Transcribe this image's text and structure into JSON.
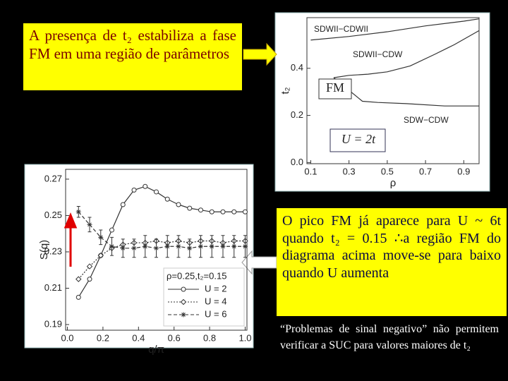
{
  "callout_top": "A presença de t₂ estabiliza a fase FM em uma região de parâmetros",
  "callout_right": "O pico FM já aparece para U ~ 6t quando t₂ = 0.15 ∴a região FM do diagrama acima move-se para baixo quando U aumenta",
  "note": "“Problemas de sinal negativo” não permitem verificar a SUC para valores maiores de t₂",
  "chart_data": [
    {
      "type": "line",
      "xlabel": "ρ",
      "ylabel": "t₂",
      "xlim": [
        0.08,
        0.98
      ],
      "ylim": [
        -0.005,
        0.615
      ],
      "xticks": [
        0.1,
        0.3,
        0.5,
        0.7,
        0.9
      ],
      "yticks": [
        {
          "value": 0,
          "label": "0.0"
        },
        0.2,
        0.4
      ],
      "region_labels": [
        "SDWII−CDWII",
        "SDWII−CDW",
        "SDW−CDW",
        "FM",
        "U = 2t"
      ],
      "series": [
        {
          "color": "#333333",
          "x": [
            0.1,
            0.3,
            0.5,
            0.7,
            0.9,
            0.98
          ],
          "values": [
            0.52,
            0.535,
            0.555,
            0.58,
            0.6,
            0.61
          ]
        },
        {
          "color": "#333333",
          "x": [
            0.98,
            0.85,
            0.75,
            0.62,
            0.5,
            0.4,
            0.3,
            0.22
          ],
          "values": [
            0.56,
            0.5,
            0.46,
            0.41,
            0.385,
            0.375,
            0.37,
            0.36
          ]
        },
        {
          "color": "#333333",
          "x": [
            0.22,
            0.28,
            0.34,
            0.37,
            0.45,
            0.6,
            0.8,
            0.98
          ],
          "values": [
            0.36,
            0.32,
            0.28,
            0.26,
            0.255,
            0.25,
            0.24,
            0.24
          ]
        }
      ]
    },
    {
      "type": "line",
      "xlabel": "q/π",
      "ylabel": "S(q)",
      "legend_title": "ρ=0.25,t₂=0.15",
      "xlim": [
        -0.01,
        1.01
      ],
      "ylim": [
        0.1869,
        0.2754
      ],
      "xticks": [
        {
          "value": 0,
          "label": "0.0"
        },
        0.2,
        0.4,
        0.6,
        0.8,
        {
          "value": 1,
          "label": "1.0"
        }
      ],
      "yticks": [
        0.19,
        0.21,
        0.23,
        0.25,
        0.27
      ],
      "x": [
        0.0625,
        0.125,
        0.1875,
        0.25,
        0.3125,
        0.375,
        0.4375,
        0.5,
        0.5625,
        0.625,
        0.6875,
        0.75,
        0.8125,
        0.875,
        0.9375,
        1.0
      ],
      "series": [
        {
          "name": "U = 2",
          "color": "#333333",
          "marker": "circle",
          "dash": "none",
          "values": [
            0.205,
            0.215,
            0.228,
            0.242,
            0.256,
            0.264,
            0.266,
            0.263,
            0.259,
            0.256,
            0.254,
            0.253,
            0.252,
            0.252,
            0.252,
            0.252
          ]
        },
        {
          "name": "U = 4",
          "color": "#333333",
          "marker": "diamond",
          "dash": "2 2",
          "values": [
            0.215,
            0.222,
            0.228,
            0.232,
            0.234,
            0.235,
            0.235,
            0.236,
            0.235,
            0.236,
            0.235,
            0.236,
            0.236,
            0.235,
            0.236,
            0.236
          ]
        },
        {
          "name": "U = 6",
          "color": "#333333",
          "marker": "star",
          "dash": "5 3",
          "values": [
            0.252,
            0.245,
            0.238,
            0.233,
            0.232,
            0.232,
            0.233,
            0.232,
            0.233,
            0.233,
            0.232,
            0.233,
            0.233,
            0.233,
            0.233,
            0.233
          ],
          "errors": [
            0.003,
            0.004,
            0.004,
            0.005,
            0.005,
            0.005,
            0.006,
            0.005,
            0.006,
            0.006,
            0.005,
            0.006,
            0.006,
            0.006,
            0.006,
            0.006
          ]
        }
      ]
    }
  ]
}
